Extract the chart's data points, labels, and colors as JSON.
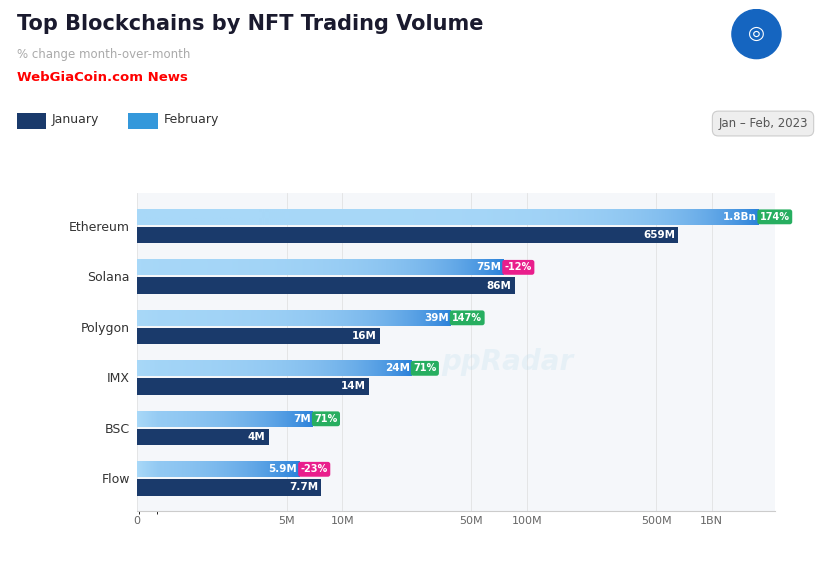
{
  "title": "Top Blockchains by NFT Trading Volume",
  "subtitle": "% change month-over-month",
  "watermark": "WebGiaCoin.com News",
  "date_label": "Jan – Feb, 2023",
  "legend_jan": "January",
  "legend_feb": "February",
  "categories": [
    "Ethereum",
    "Solana",
    "Polygon",
    "IMX",
    "BSC",
    "Flow"
  ],
  "feb_values": [
    1800000000,
    75000000,
    39000000,
    24000000,
    7000000,
    5900000
  ],
  "jan_values": [
    659000000,
    86000000,
    16000000,
    14000000,
    4000000,
    7700000
  ],
  "feb_labels": [
    "1.8Bn",
    "75M",
    "39M",
    "24M",
    "7M",
    "5.9M"
  ],
  "jan_labels": [
    "659M",
    "86M",
    "16M",
    "14M",
    "4M",
    "7.7M"
  ],
  "change_labels": [
    "174%",
    "-12%",
    "147%",
    "71%",
    "71%",
    "-23%"
  ],
  "change_positive": [
    true,
    false,
    true,
    true,
    true,
    false
  ],
  "color_feb_left": "#A8D8F8",
  "color_feb_right": "#2980D9",
  "color_jan": "#1A3A6B",
  "color_pos_badge": "#27AE60",
  "color_neg_badge": "#E91E8C",
  "color_legend_jan": "#1A3A6B",
  "color_legend_feb": "#3498DB",
  "background": "#FFFFFF",
  "chart_bg": "#F5F7FA",
  "title_fontsize": 15,
  "subtitle_fontsize": 8.5,
  "bar_height": 0.32,
  "xtick_positions": [
    0,
    5000000,
    10000000,
    50000000,
    100000000,
    500000000,
    1000000000
  ],
  "xtick_labels": [
    "0",
    "5M",
    "10M",
    "50M",
    "100M",
    "500M",
    "1BN"
  ]
}
